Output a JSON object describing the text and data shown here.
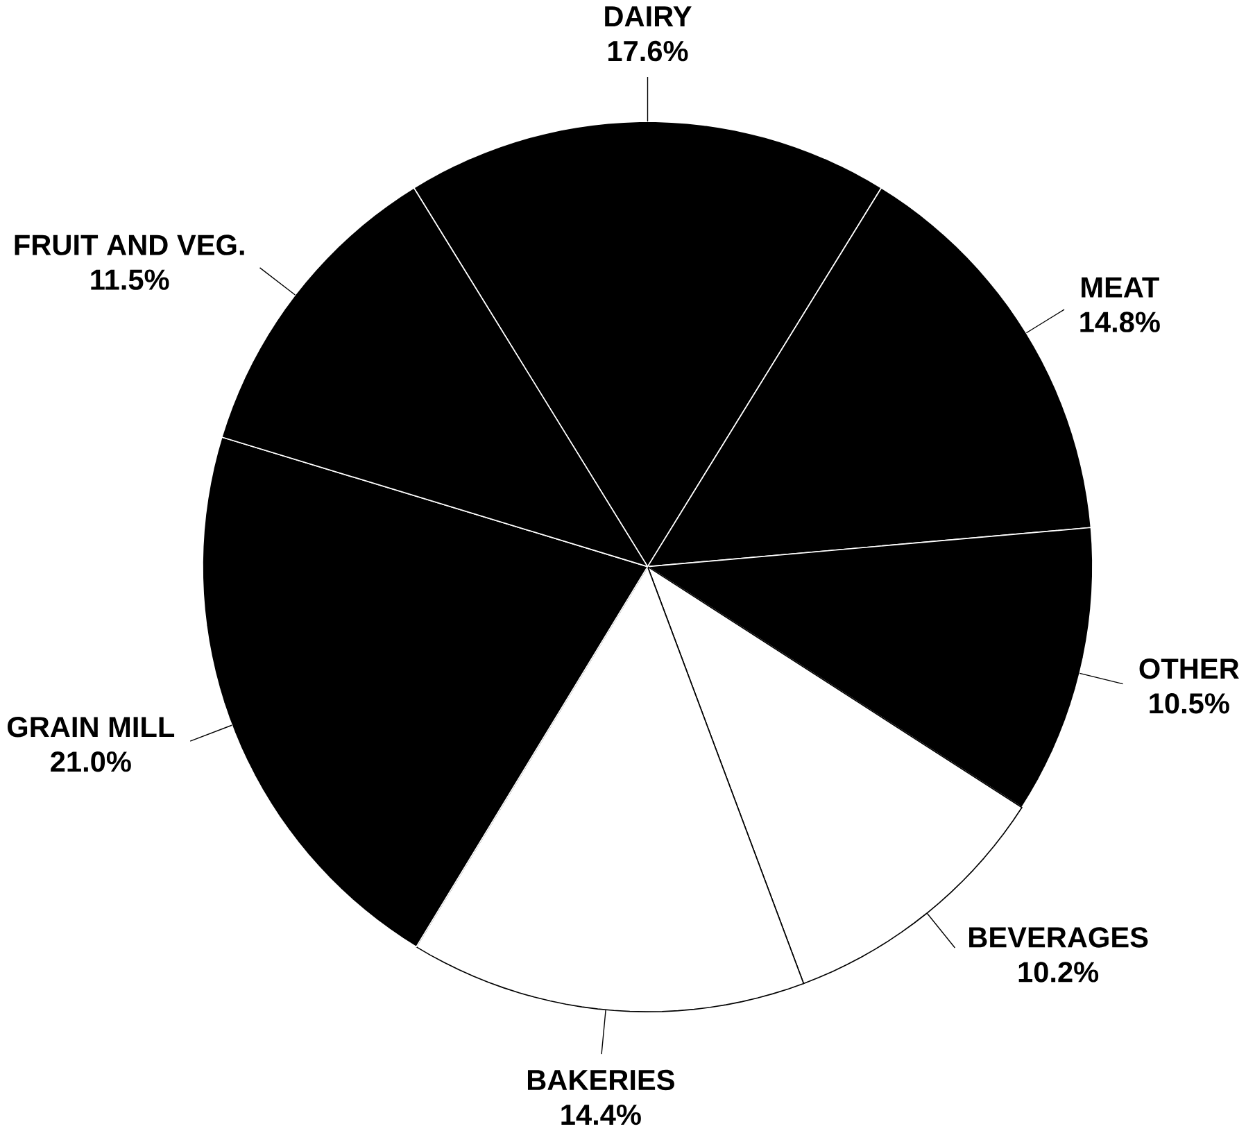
{
  "chart_data": {
    "type": "pie",
    "categories": [
      "DAIRY",
      "MEAT",
      "OTHER",
      "BEVERAGES",
      "BAKERIES",
      "GRAIN MILL",
      "FRUIT AND VEG."
    ],
    "values": [
      17.6,
      14.8,
      10.5,
      10.2,
      14.4,
      21.0,
      11.5
    ],
    "value_labels": [
      "17.6%",
      "14.8%",
      "10.5%",
      "10.2%",
      "14.4%",
      "21.0%",
      "11.5%"
    ],
    "colors": [
      "#000000",
      "#000000",
      "#000000",
      "#ffffff",
      "#ffffff",
      "#000000",
      "#000000"
    ]
  }
}
